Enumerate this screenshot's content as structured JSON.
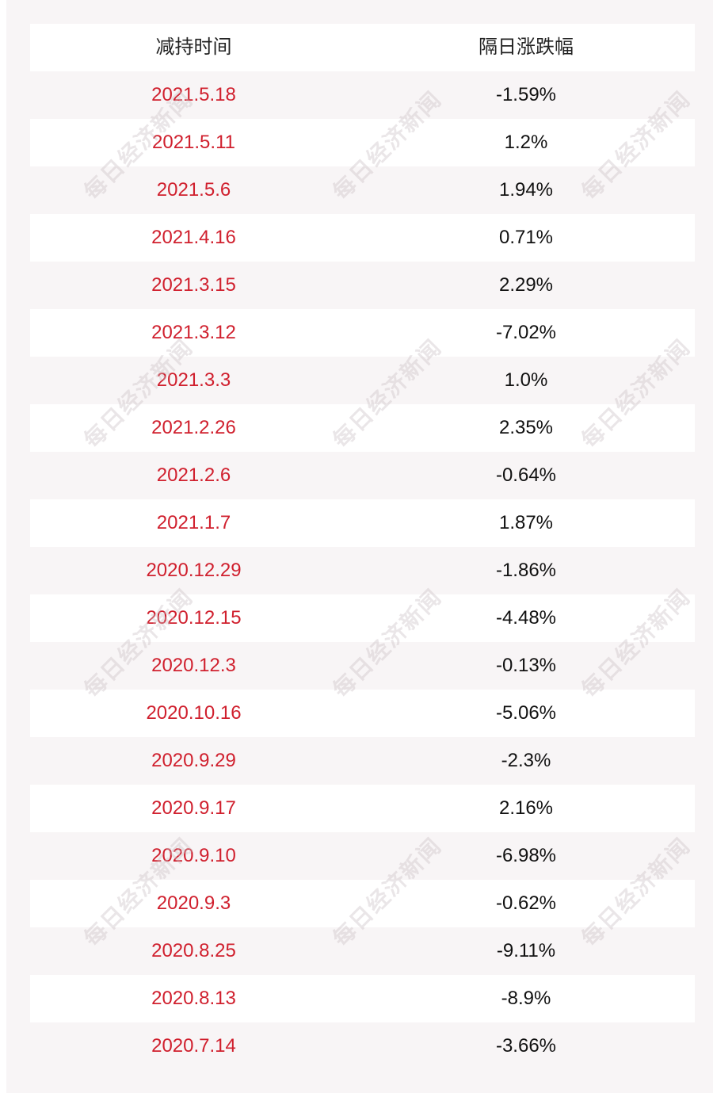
{
  "table": {
    "headers": {
      "date": "减持时间",
      "change": "隔日涨跌幅"
    },
    "rows": [
      {
        "date": "2021.5.18",
        "change": "-1.59%"
      },
      {
        "date": "2021.5.11",
        "change": "1.2%"
      },
      {
        "date": "2021.5.6",
        "change": "1.94%"
      },
      {
        "date": "2021.4.16",
        "change": "0.71%"
      },
      {
        "date": "2021.3.15",
        "change": "2.29%"
      },
      {
        "date": "2021.3.12",
        "change": "-7.02%"
      },
      {
        "date": "2021.3.3",
        "change": "1.0%"
      },
      {
        "date": "2021.2.26",
        "change": "2.35%"
      },
      {
        "date": "2021.2.6",
        "change": "-0.64%"
      },
      {
        "date": "2021.1.7",
        "change": "1.87%"
      },
      {
        "date": "2020.12.29",
        "change": "-1.86%"
      },
      {
        "date": "2020.12.15",
        "change": "-4.48%"
      },
      {
        "date": "2020.12.3",
        "change": "-0.13%"
      },
      {
        "date": "2020.10.16",
        "change": "-5.06%"
      },
      {
        "date": "2020.9.29",
        "change": "-2.3%"
      },
      {
        "date": "2020.9.17",
        "change": "2.16%"
      },
      {
        "date": "2020.9.10",
        "change": "-6.98%"
      },
      {
        "date": "2020.9.3",
        "change": "-0.62%"
      },
      {
        "date": "2020.8.25",
        "change": "-9.11%"
      },
      {
        "date": "2020.8.13",
        "change": "-8.9%"
      },
      {
        "date": "2020.7.14",
        "change": "-3.66%"
      }
    ]
  },
  "watermark": {
    "text": "每日经济新闻"
  },
  "colors": {
    "date_text": "#d0202e",
    "change_text": "#111111",
    "panel_bg": "#f8f5f6",
    "row_white": "#ffffff"
  }
}
